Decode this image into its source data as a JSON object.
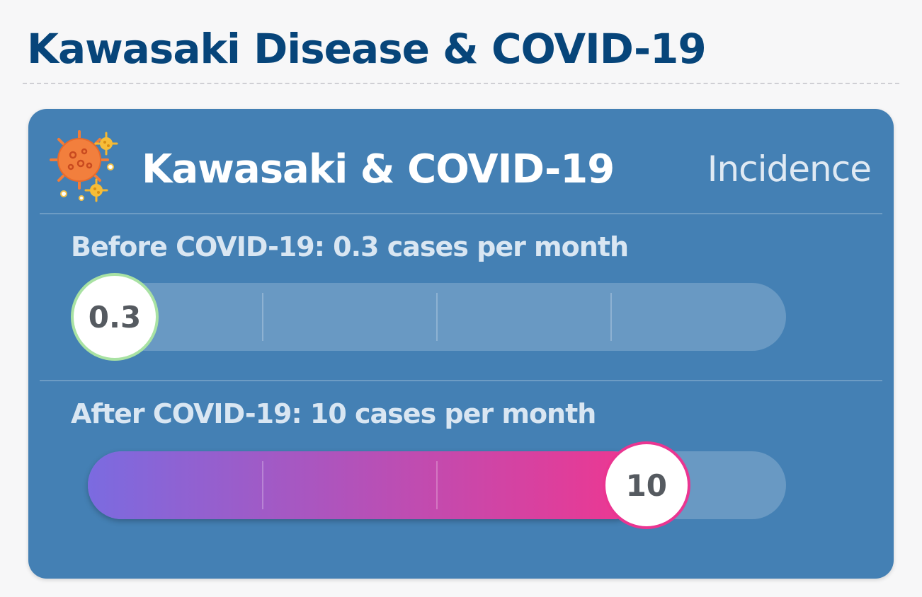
{
  "page": {
    "title": "Kawasaki Disease & COVID-19",
    "title_color": "#07457a",
    "card_background": "#4480b4"
  },
  "card": {
    "icon": "virus-icon",
    "title": "Kawasaki & COVID-19",
    "tag": "Incidence",
    "rows": [
      {
        "label": "Before COVID-19: 0.3 cases per month",
        "value": "0.3",
        "fraction": 0.03,
        "knob_border": "#a9e2a3",
        "fill_gradient": [
          "#7f6ede",
          "#7f6ede"
        ]
      },
      {
        "label": "After COVID-19: 10 cases per month",
        "value": "10",
        "fraction": 0.8,
        "knob_border": "#ea3591",
        "fill_gradient": [
          "#7b6be0",
          "#f0368f"
        ]
      }
    ]
  }
}
